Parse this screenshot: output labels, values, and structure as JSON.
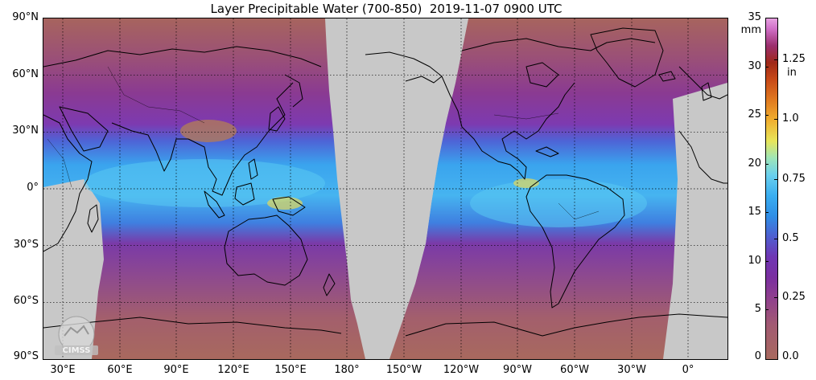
{
  "title": "Layer Precipitable Water (700-850)  2019-11-07 0900 UTC",
  "lat_labels": [
    "90°N",
    "60°N",
    "30°N",
    "0°",
    "30°S",
    "60°S",
    "90°S"
  ],
  "lon_labels": [
    "30°E",
    "60°E",
    "90°E",
    "120°E",
    "150°E",
    "180°",
    "150°W",
    "120°W",
    "90°W",
    "60°W",
    "30°W",
    "0°"
  ],
  "colorbar": {
    "mm_unit": "mm",
    "in_unit": "in",
    "mm_ticks": [
      "35",
      "30",
      "25",
      "20",
      "15",
      "10",
      "5",
      "0"
    ],
    "in_ticks": [
      "1.25",
      "1.0",
      "0.75",
      "0.5",
      "0.25",
      "0.0"
    ]
  },
  "logo_text": "CIMSS",
  "colors": {
    "no_data": "#c8c8c8",
    "dry": "#a8695e",
    "moist": "#3aaef0",
    "coast": "#000000"
  }
}
